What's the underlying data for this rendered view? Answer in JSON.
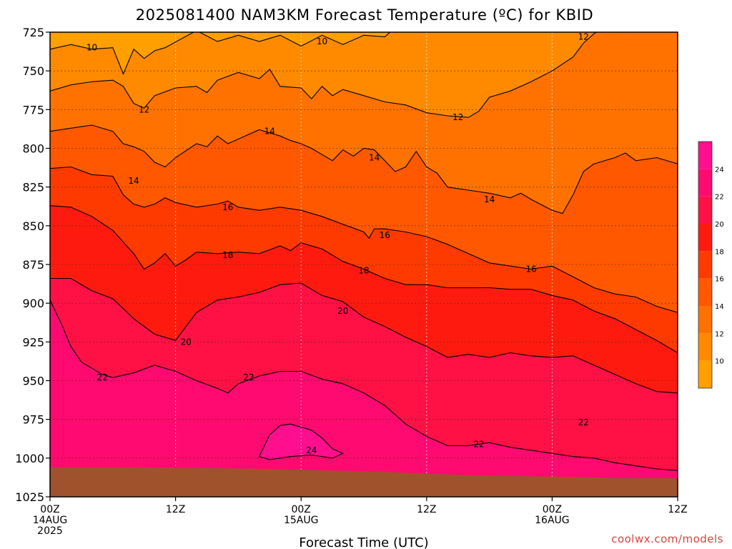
{
  "chart_data": {
    "type": "contour",
    "title": "2025081400 NAM3KM Forecast Temperature (ºC) for KBID",
    "xlabel": "Forecast Time (UTC)",
    "ylabel": "",
    "y_axis": {
      "unit": "hPa",
      "ticks": [
        725,
        750,
        775,
        800,
        825,
        850,
        875,
        900,
        925,
        950,
        975,
        1000,
        1025
      ],
      "range": [
        725,
        1025
      ],
      "inverted": true
    },
    "x_axis": {
      "range_hours": [
        0,
        60
      ],
      "ticks": [
        {
          "hour": 0,
          "line1": "00Z",
          "line2": "14AUG",
          "line3": "2025"
        },
        {
          "hour": 12,
          "line1": "12Z",
          "line2": "",
          "line3": ""
        },
        {
          "hour": 24,
          "line1": "00Z",
          "line2": "15AUG",
          "line3": ""
        },
        {
          "hour": 36,
          "line1": "12Z",
          "line2": "",
          "line3": ""
        },
        {
          "hour": 48,
          "line1": "00Z",
          "line2": "16AUG",
          "line3": ""
        },
        {
          "hour": 60,
          "line1": "12Z",
          "line2": "",
          "line3": ""
        }
      ]
    },
    "grid": true,
    "ground_color": "#a0522d",
    "surface_pressure": [
      [
        0,
        1006
      ],
      [
        8,
        1006
      ],
      [
        16,
        1006.5
      ],
      [
        24,
        1007.5
      ],
      [
        32,
        1009
      ],
      [
        40,
        1011
      ],
      [
        48,
        1012
      ],
      [
        56,
        1013
      ],
      [
        60,
        1013
      ]
    ],
    "levels": [
      10,
      12,
      14,
      16,
      18,
      20,
      22,
      24
    ],
    "level_colors": [
      "#ff9f00",
      "#ff8a00",
      "#ff7200",
      "#ff5800",
      "#ff3a00",
      "#ff1a10",
      "#ff1045",
      "#ff0a70",
      "#ff0e8e"
    ],
    "contours": [
      {
        "level": 10,
        "points": [
          [
            0,
            736
          ],
          [
            2,
            733
          ],
          [
            4,
            736
          ],
          [
            6,
            735
          ],
          [
            7,
            752
          ],
          [
            8,
            736
          ],
          [
            9,
            742
          ],
          [
            10,
            737
          ],
          [
            11,
            735
          ],
          [
            14,
            724
          ],
          [
            16,
            731
          ],
          [
            18,
            727
          ],
          [
            20,
            731
          ],
          [
            22,
            727
          ],
          [
            24,
            734
          ],
          [
            26,
            727
          ],
          [
            28,
            733
          ],
          [
            30,
            727
          ],
          [
            32,
            728
          ],
          [
            33,
            722
          ]
        ],
        "labels": [
          [
            4,
            735
          ],
          [
            26,
            731
          ]
        ]
      },
      {
        "level": 12,
        "points": [
          [
            0,
            763
          ],
          [
            2,
            759
          ],
          [
            4,
            757
          ],
          [
            6,
            756
          ],
          [
            7,
            760
          ],
          [
            8,
            771
          ],
          [
            9,
            774
          ],
          [
            10,
            766
          ],
          [
            12,
            761
          ],
          [
            14,
            760
          ],
          [
            15,
            764
          ],
          [
            16,
            756
          ],
          [
            18,
            751
          ],
          [
            20,
            755
          ],
          [
            21,
            749
          ],
          [
            22,
            760
          ],
          [
            24,
            761
          ],
          [
            25,
            768
          ],
          [
            26,
            760
          ],
          [
            27,
            766
          ],
          [
            28,
            762
          ],
          [
            30,
            766
          ],
          [
            32,
            770
          ],
          [
            34,
            772
          ],
          [
            36,
            777
          ],
          [
            38,
            779
          ],
          [
            40,
            780
          ],
          [
            41,
            776
          ],
          [
            42,
            767
          ],
          [
            44,
            763
          ],
          [
            46,
            757
          ],
          [
            48,
            750
          ],
          [
            50,
            741
          ],
          [
            51,
            732
          ],
          [
            52,
            726
          ],
          [
            53,
            722
          ]
        ],
        "labels": [
          [
            9,
            775
          ],
          [
            39,
            780
          ],
          [
            51,
            728
          ]
        ]
      },
      {
        "level": 14,
        "points": [
          [
            0,
            789
          ],
          [
            2,
            787
          ],
          [
            4,
            785
          ],
          [
            6,
            789
          ],
          [
            7,
            797
          ],
          [
            8,
            799
          ],
          [
            9,
            802
          ],
          [
            10,
            809
          ],
          [
            11,
            812
          ],
          [
            12,
            806
          ],
          [
            14,
            797
          ],
          [
            15,
            799
          ],
          [
            16,
            792
          ],
          [
            17,
            797
          ],
          [
            18,
            794
          ],
          [
            20,
            788
          ],
          [
            22,
            792
          ],
          [
            23,
            795
          ],
          [
            24,
            797
          ],
          [
            25,
            800
          ],
          [
            26,
            804
          ],
          [
            27,
            808
          ],
          [
            28,
            801
          ],
          [
            29,
            805
          ],
          [
            30,
            800
          ],
          [
            31,
            801
          ],
          [
            32,
            808
          ],
          [
            33,
            815
          ],
          [
            34,
            812
          ],
          [
            35,
            802
          ],
          [
            36,
            812
          ],
          [
            37,
            816
          ],
          [
            38,
            825
          ],
          [
            40,
            827
          ],
          [
            42,
            829
          ],
          [
            44,
            832
          ],
          [
            45,
            829
          ],
          [
            46,
            833
          ],
          [
            48,
            840
          ],
          [
            49,
            842
          ],
          [
            50,
            830
          ],
          [
            51,
            815
          ],
          [
            52,
            810
          ],
          [
            54,
            806
          ],
          [
            55,
            803
          ],
          [
            56,
            808
          ],
          [
            58,
            806
          ],
          [
            60,
            810
          ]
        ],
        "labels": [
          [
            8,
            821
          ],
          [
            21,
            789
          ],
          [
            31,
            806
          ],
          [
            42,
            833
          ]
        ]
      },
      {
        "level": 16,
        "points": [
          [
            0,
            813
          ],
          [
            2,
            812
          ],
          [
            4,
            817
          ],
          [
            6,
            818
          ],
          [
            7,
            830
          ],
          [
            8,
            836
          ],
          [
            9,
            838
          ],
          [
            10,
            836
          ],
          [
            11,
            832
          ],
          [
            12,
            835
          ],
          [
            14,
            838
          ],
          [
            16,
            836
          ],
          [
            17,
            834
          ],
          [
            18,
            838
          ],
          [
            20,
            840
          ],
          [
            22,
            838
          ],
          [
            24,
            840
          ],
          [
            26,
            844
          ],
          [
            28,
            849
          ],
          [
            30,
            854
          ],
          [
            30.5,
            858
          ],
          [
            31,
            852
          ],
          [
            32,
            852
          ],
          [
            34,
            854
          ],
          [
            36,
            857
          ],
          [
            38,
            862
          ],
          [
            40,
            868
          ],
          [
            42,
            874
          ],
          [
            44,
            876
          ],
          [
            46,
            878
          ],
          [
            48,
            876
          ],
          [
            50,
            883
          ],
          [
            52,
            890
          ],
          [
            54,
            894
          ],
          [
            56,
            896
          ],
          [
            58,
            902
          ],
          [
            60,
            906
          ]
        ],
        "labels": [
          [
            17,
            838
          ],
          [
            32,
            856
          ],
          [
            46,
            878
          ]
        ]
      },
      {
        "level": 18,
        "points": [
          [
            0,
            837
          ],
          [
            2,
            838
          ],
          [
            4,
            844
          ],
          [
            6,
            853
          ],
          [
            8,
            868
          ],
          [
            9,
            878
          ],
          [
            10,
            874
          ],
          [
            11,
            868
          ],
          [
            12,
            876
          ],
          [
            13,
            872
          ],
          [
            14,
            867
          ],
          [
            16,
            868
          ],
          [
            18,
            867
          ],
          [
            20,
            868
          ],
          [
            22,
            863
          ],
          [
            23,
            866
          ],
          [
            24,
            861
          ],
          [
            26,
            865
          ],
          [
            28,
            873
          ],
          [
            30,
            878
          ],
          [
            32,
            884
          ],
          [
            34,
            888
          ],
          [
            36,
            888
          ],
          [
            38,
            890
          ],
          [
            40,
            890
          ],
          [
            42,
            890
          ],
          [
            44,
            891
          ],
          [
            46,
            891
          ],
          [
            48,
            895
          ],
          [
            50,
            898
          ],
          [
            52,
            905
          ],
          [
            54,
            910
          ],
          [
            56,
            917
          ],
          [
            58,
            924
          ],
          [
            60,
            932
          ]
        ],
        "labels": [
          [
            17,
            869
          ],
          [
            30,
            879
          ]
        ]
      },
      {
        "level": 20,
        "points": [
          [
            0,
            884
          ],
          [
            2,
            884
          ],
          [
            4,
            892
          ],
          [
            6,
            897
          ],
          [
            8,
            910
          ],
          [
            10,
            920
          ],
          [
            12,
            924
          ],
          [
            14,
            906
          ],
          [
            16,
            898
          ],
          [
            18,
            896
          ],
          [
            20,
            893
          ],
          [
            22,
            888
          ],
          [
            24,
            887
          ],
          [
            26,
            895
          ],
          [
            28,
            899
          ],
          [
            30,
            909
          ],
          [
            32,
            915
          ],
          [
            34,
            922
          ],
          [
            36,
            928
          ],
          [
            38,
            935
          ],
          [
            40,
            933
          ],
          [
            42,
            935
          ],
          [
            44,
            932
          ],
          [
            46,
            934
          ],
          [
            48,
            935
          ],
          [
            50,
            934
          ],
          [
            52,
            940
          ],
          [
            54,
            946
          ],
          [
            56,
            952
          ],
          [
            58,
            957
          ],
          [
            60,
            958
          ]
        ],
        "labels": [
          [
            13,
            925
          ],
          [
            28,
            905
          ]
        ]
      },
      {
        "level": 22,
        "points": [
          [
            0,
            898
          ],
          [
            1,
            912
          ],
          [
            2,
            928
          ],
          [
            3,
            938
          ],
          [
            4,
            942
          ],
          [
            5,
            946
          ],
          [
            6,
            948
          ],
          [
            8,
            945
          ],
          [
            10,
            940
          ],
          [
            12,
            944
          ],
          [
            14,
            950
          ],
          [
            16,
            955
          ],
          [
            17,
            958
          ],
          [
            18,
            952
          ],
          [
            20,
            947
          ],
          [
            22,
            944
          ],
          [
            24,
            944
          ],
          [
            26,
            949
          ],
          [
            28,
            952
          ],
          [
            30,
            958
          ],
          [
            32,
            966
          ],
          [
            34,
            978
          ],
          [
            36,
            986
          ],
          [
            38,
            992
          ],
          [
            40,
            992
          ],
          [
            42,
            990
          ],
          [
            44,
            993
          ],
          [
            46,
            995
          ],
          [
            48,
            997
          ],
          [
            50,
            999
          ],
          [
            52,
            1000
          ],
          [
            54,
            1003
          ],
          [
            56,
            1005
          ],
          [
            58,
            1007
          ],
          [
            60,
            1008
          ]
        ],
        "labels": [
          [
            5,
            948
          ],
          [
            19,
            948
          ],
          [
            41,
            991
          ],
          [
            51,
            977
          ]
        ]
      },
      {
        "level": 24,
        "points": [
          [
            20,
            999
          ],
          [
            21,
            985
          ],
          [
            22,
            979
          ],
          [
            23,
            978
          ],
          [
            24,
            980
          ],
          [
            25,
            982
          ],
          [
            26,
            987
          ],
          [
            27,
            994
          ],
          [
            28,
            997
          ],
          [
            27,
            1000
          ],
          [
            25,
            998
          ],
          [
            23,
            999
          ],
          [
            21,
            1001
          ],
          [
            20,
            999
          ]
        ],
        "labels": [
          [
            25,
            995
          ]
        ]
      }
    ]
  },
  "colorbar": {
    "labels": [
      "10",
      "12",
      "14",
      "16",
      "18",
      "20",
      "22",
      "24"
    ],
    "colors": [
      "#ff9f00",
      "#ff8a00",
      "#ff7200",
      "#ff5800",
      "#ff3a00",
      "#ff1a10",
      "#ff1045",
      "#ff0a70",
      "#ff0e8e"
    ]
  },
  "credit": "coolwx.com/models"
}
